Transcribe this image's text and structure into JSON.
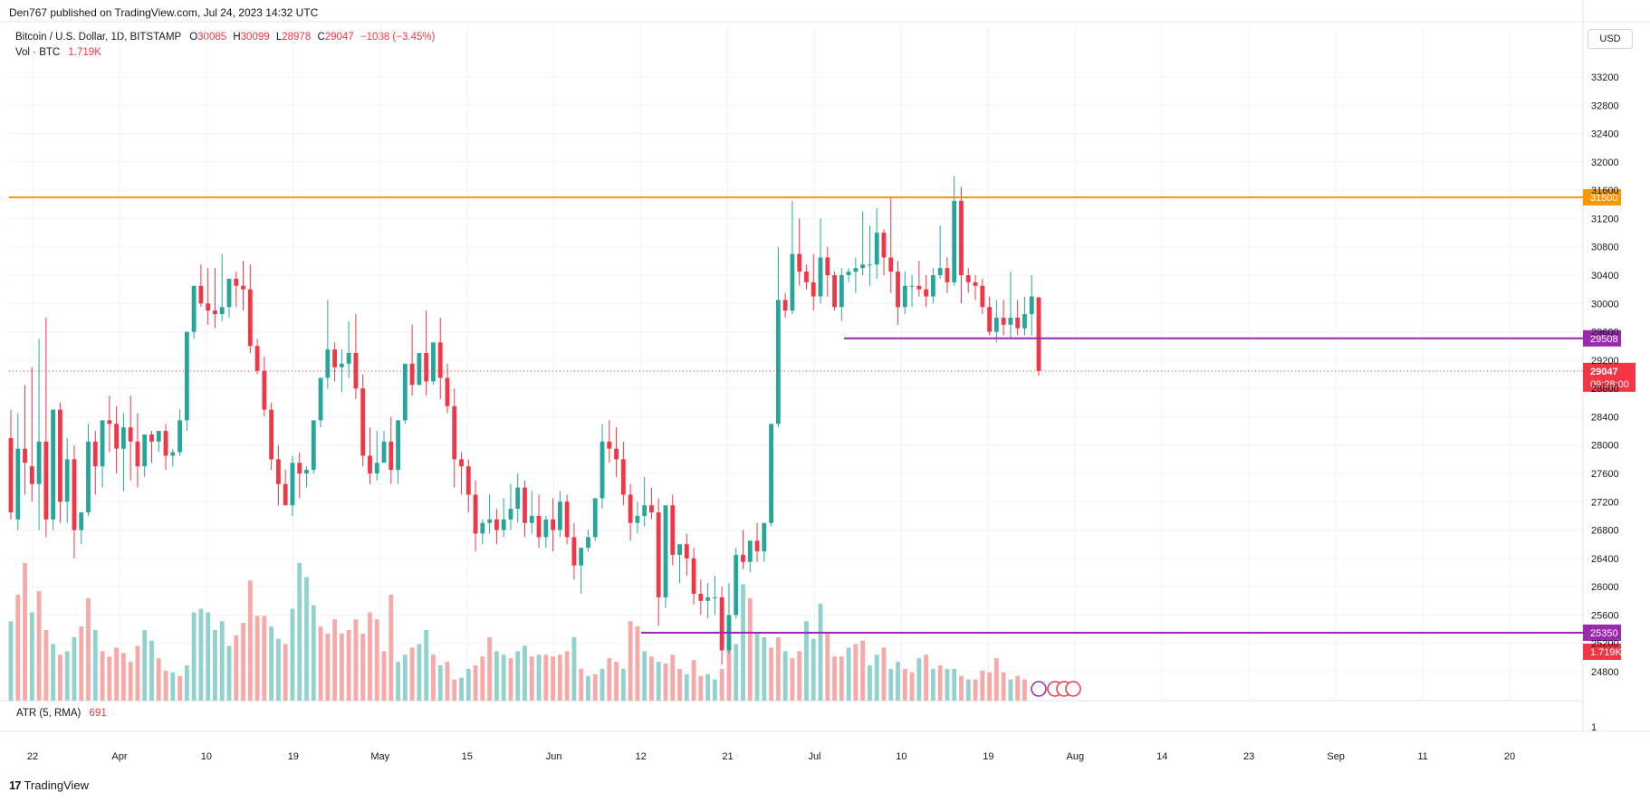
{
  "header": {
    "published": "Den767 published on TradingView.com, Jul 24, 2023 14:32 UTC",
    "symbol": "Bitcoin / U.S. Dollar, 1D, BITSTAMP",
    "o_label": "O",
    "o_value": "30085",
    "h_label": "H",
    "h_value": "30099",
    "l_label": "L",
    "l_value": "28978",
    "c_label": "C",
    "c_value": "29047",
    "change": "−1038 (−3.45%)",
    "vol_label": "Vol · BTC",
    "vol_value": "1.719K",
    "currency_button": "USD"
  },
  "atr": {
    "label": "ATR (5, RMA)",
    "value": "691",
    "axis_tick": "1"
  },
  "footer": {
    "brand": "TradingView",
    "logo_mark": "17"
  },
  "colors": {
    "up": "#26a69a",
    "down": "#f23645",
    "orange": "#ff9800",
    "purple": "#9c27b0",
    "vol_up": "#92d2cc",
    "vol_down": "#f7a9a7"
  },
  "chart_data": {
    "type": "candlestick",
    "yticks": [
      "33200",
      "32800",
      "32400",
      "32000",
      "31600",
      "31200",
      "30800",
      "30400",
      "30000",
      "29600",
      "29200",
      "28800",
      "28400",
      "28000",
      "27600",
      "27200",
      "26800",
      "26400",
      "26000",
      "25600",
      "25200",
      "24800"
    ],
    "ylim": [
      24500,
      33500
    ],
    "xticks": [
      "22",
      "Apr",
      "10",
      "19",
      "May",
      "15",
      "Jun",
      "12",
      "21",
      "Jul",
      "10",
      "19",
      "Aug",
      "14",
      "23",
      "Sep",
      "11",
      "20"
    ],
    "horizontal_levels": [
      {
        "value": 31500,
        "label": "31500",
        "color": "#ff9800"
      },
      {
        "value": 29508,
        "label": "29508",
        "color": "#9c27b0"
      },
      {
        "value": 25350,
        "label": "25350",
        "color": "#9c27b0"
      }
    ],
    "last_price": {
      "value": 29047,
      "label": "29047",
      "countdown": "09:28:00"
    },
    "volume_last_label": "1.719K",
    "candles": [
      [
        28100,
        28500,
        27050,
        26950
      ],
      [
        26950,
        28450,
        27950,
        26800
      ],
      [
        27950,
        28850,
        27750,
        27300
      ],
      [
        27700,
        29100,
        27450,
        27200
      ],
      [
        27450,
        29500,
        28050,
        26800
      ],
      [
        28050,
        29800,
        26950,
        26700
      ],
      [
        26950,
        28400,
        28500,
        26800
      ],
      [
        28500,
        28600,
        27200,
        26900
      ],
      [
        27200,
        28100,
        27800,
        26900
      ],
      [
        27800,
        28000,
        26800,
        26400
      ],
      [
        26800,
        26950,
        27050,
        26600
      ],
      [
        27050,
        28300,
        28050,
        27000
      ],
      [
        28050,
        28200,
        27700,
        27300
      ],
      [
        27700,
        28300,
        28350,
        27400
      ],
      [
        28350,
        28700,
        28300,
        27900
      ],
      [
        28300,
        28550,
        27950,
        27600
      ],
      [
        27950,
        28450,
        28250,
        27350
      ],
      [
        28250,
        28700,
        28050,
        27500
      ],
      [
        28050,
        28450,
        27700,
        27400
      ],
      [
        27700,
        28150,
        28150,
        27550
      ],
      [
        28150,
        28200,
        28050,
        27750
      ],
      [
        28050,
        28200,
        28200,
        27900
      ],
      [
        28200,
        28300,
        27850,
        27650
      ],
      [
        27850,
        27950,
        27900,
        27700
      ],
      [
        27900,
        28500,
        28350,
        27850
      ],
      [
        28350,
        28550,
        29600,
        28200
      ],
      [
        29600,
        30100,
        30250,
        29500
      ],
      [
        30250,
        30550,
        30000,
        29950
      ],
      [
        30000,
        30500,
        29900,
        29700
      ],
      [
        29900,
        30500,
        29850,
        29650
      ],
      [
        29850,
        30700,
        29950,
        29750
      ],
      [
        29950,
        30350,
        30350,
        29800
      ],
      [
        30350,
        30450,
        30250,
        29950
      ],
      [
        30250,
        30600,
        30200,
        29900
      ],
      [
        30200,
        30550,
        29400,
        29300
      ],
      [
        29400,
        29500,
        29050,
        29000
      ],
      [
        29050,
        29250,
        28500,
        28400
      ],
      [
        28500,
        28600,
        27800,
        27650
      ],
      [
        27800,
        28000,
        27450,
        27150
      ],
      [
        27450,
        27650,
        27150,
        27200
      ],
      [
        27150,
        27850,
        27750,
        27000
      ],
      [
        27750,
        27900,
        27600,
        27250
      ],
      [
        27600,
        27700,
        27650,
        27400
      ],
      [
        27650,
        28250,
        28350,
        27600
      ],
      [
        28350,
        28650,
        28950,
        28250
      ],
      [
        28950,
        30050,
        29350,
        28800
      ],
      [
        29350,
        29450,
        29100,
        28900
      ],
      [
        29100,
        29350,
        29150,
        28750
      ],
      [
        29150,
        29750,
        29300,
        28950
      ],
      [
        29300,
        29850,
        28800,
        28650
      ],
      [
        28800,
        29000,
        27850,
        27700
      ],
      [
        27850,
        28250,
        27600,
        27450
      ],
      [
        27600,
        28200,
        27750,
        27500
      ],
      [
        27750,
        28200,
        28050,
        27850
      ],
      [
        28050,
        28400,
        27650,
        27450
      ],
      [
        27650,
        28100,
        28350,
        27450
      ],
      [
        28350,
        28500,
        29150,
        28300
      ],
      [
        29150,
        29700,
        28850,
        28700
      ],
      [
        28850,
        29150,
        29300,
        28850
      ],
      [
        29300,
        29900,
        28900,
        28700
      ],
      [
        28900,
        29150,
        29450,
        28850
      ],
      [
        29450,
        29800,
        28950,
        28650
      ],
      [
        28950,
        29150,
        28550,
        28450
      ],
      [
        28550,
        28800,
        27800,
        27400
      ],
      [
        27800,
        27900,
        27700,
        27300
      ],
      [
        27700,
        27800,
        27300,
        27050
      ],
      [
        27300,
        27500,
        26750,
        26500
      ],
      [
        26750,
        26950,
        26900,
        26600
      ],
      [
        26900,
        27300,
        26950,
        26750
      ],
      [
        26950,
        27100,
        26800,
        26600
      ],
      [
        26800,
        27250,
        26950,
        26700
      ],
      [
        26950,
        27450,
        27100,
        26800
      ],
      [
        27100,
        27600,
        27400,
        26900
      ],
      [
        27400,
        27500,
        26900,
        26700
      ],
      [
        26900,
        27350,
        27000,
        26750
      ],
      [
        27000,
        27300,
        26700,
        26550
      ],
      [
        26700,
        27000,
        26950,
        26550
      ],
      [
        26950,
        27250,
        26800,
        26500
      ],
      [
        26800,
        27350,
        27200,
        26700
      ],
      [
        27200,
        27300,
        26700,
        26600
      ],
      [
        26700,
        26900,
        26300,
        26100
      ],
      [
        26300,
        26450,
        26550,
        25900
      ],
      [
        26550,
        26800,
        26700,
        26500
      ],
      [
        26700,
        27100,
        27250,
        26650
      ],
      [
        27250,
        28300,
        28050,
        27100
      ],
      [
        28050,
        28350,
        27950,
        27750
      ],
      [
        27950,
        28250,
        27800,
        27550
      ],
      [
        27800,
        28050,
        27300,
        27150
      ],
      [
        27300,
        27450,
        26900,
        26650
      ],
      [
        26900,
        27200,
        27000,
        26750
      ],
      [
        27000,
        27550,
        27150,
        26850
      ],
      [
        27150,
        27400,
        27050,
        26950
      ],
      [
        27050,
        27250,
        25850,
        25450
      ],
      [
        25850,
        27050,
        27150,
        25700
      ],
      [
        27150,
        27300,
        26450,
        26300
      ],
      [
        26450,
        26600,
        26600,
        26050
      ],
      [
        26600,
        26750,
        26400,
        26150
      ],
      [
        26400,
        26550,
        25900,
        25750
      ],
      [
        25900,
        26100,
        25800,
        25600
      ],
      [
        25800,
        26050,
        25850,
        25550
      ],
      [
        25850,
        26150,
        25850,
        25600
      ],
      [
        25850,
        26000,
        25100,
        24900
      ],
      [
        25100,
        26050,
        25600,
        25050
      ],
      [
        25600,
        26550,
        26450,
        25550
      ],
      [
        26450,
        26800,
        26350,
        26250
      ],
      [
        26350,
        26600,
        26650,
        26200
      ],
      [
        26650,
        26900,
        26500,
        26350
      ],
      [
        26500,
        26800,
        26900,
        26350
      ],
      [
        26900,
        27000,
        28300,
        26850
      ],
      [
        28300,
        30800,
        30050,
        28250
      ],
      [
        30050,
        30150,
        29900,
        29800
      ],
      [
        29900,
        31450,
        30700,
        29850
      ],
      [
        30700,
        31200,
        30450,
        30250
      ],
      [
        30450,
        30550,
        30300,
        30200
      ],
      [
        30300,
        30700,
        30100,
        29900
      ],
      [
        30100,
        31200,
        30650,
        30000
      ],
      [
        30650,
        30800,
        30400,
        30100
      ],
      [
        30400,
        30450,
        29950,
        29900
      ],
      [
        29950,
        30500,
        30400,
        29750
      ],
      [
        30400,
        30500,
        30450,
        30300
      ],
      [
        30450,
        30650,
        30500,
        30150
      ],
      [
        30500,
        31300,
        30550,
        30400
      ],
      [
        30550,
        31100,
        30550,
        30250
      ],
      [
        30550,
        31350,
        31000,
        30350
      ],
      [
        31000,
        31050,
        30650,
        30400
      ],
      [
        30650,
        31500,
        30450,
        30150
      ],
      [
        30450,
        30600,
        29950,
        29700
      ],
      [
        29950,
        30450,
        30250,
        29850
      ],
      [
        30250,
        30400,
        30250,
        29950
      ],
      [
        30250,
        30600,
        30200,
        30100
      ],
      [
        30200,
        30400,
        30100,
        29950
      ],
      [
        30100,
        30500,
        30400,
        30000
      ],
      [
        30400,
        31100,
        30500,
        30350
      ],
      [
        30500,
        30650,
        30300,
        30150
      ],
      [
        30300,
        31800,
        31450,
        30250
      ],
      [
        31450,
        31650,
        30400,
        30000
      ],
      [
        30400,
        30500,
        30300,
        30150
      ],
      [
        30300,
        30400,
        30250,
        30050
      ],
      [
        30250,
        30350,
        29950,
        29850
      ],
      [
        29950,
        30100,
        29600,
        29550
      ],
      [
        29600,
        30050,
        29800,
        29450
      ],
      [
        29800,
        30050,
        29700,
        29550
      ],
      [
        29700,
        30450,
        29800,
        29500
      ],
      [
        29800,
        30050,
        29650,
        29550
      ],
      [
        29650,
        30100,
        29850,
        29550
      ],
      [
        29850,
        30400,
        30100,
        29550
      ],
      [
        30085,
        30099,
        29047,
        28978
      ]
    ],
    "volumes": [
      [
        45,
        1
      ],
      [
        60,
        0
      ],
      [
        78,
        0
      ],
      [
        50,
        1
      ],
      [
        62,
        0
      ],
      [
        40,
        0
      ],
      [
        32,
        1
      ],
      [
        26,
        0
      ],
      [
        28,
        1
      ],
      [
        36,
        1
      ],
      [
        42,
        0
      ],
      [
        58,
        0
      ],
      [
        40,
        1
      ],
      [
        28,
        0
      ],
      [
        25,
        0
      ],
      [
        30,
        0
      ],
      [
        27,
        0
      ],
      [
        22,
        0
      ],
      [
        31,
        0
      ],
      [
        40,
        1
      ],
      [
        34,
        1
      ],
      [
        24,
        0
      ],
      [
        17,
        0
      ],
      [
        16,
        1
      ],
      [
        14,
        0
      ],
      [
        20,
        1
      ],
      [
        50,
        1
      ],
      [
        52,
        1
      ],
      [
        50,
        1
      ],
      [
        40,
        1
      ],
      [
        45,
        1
      ],
      [
        31,
        1
      ],
      [
        37,
        0
      ],
      [
        44,
        0
      ],
      [
        68,
        0
      ],
      [
        48,
        0
      ],
      [
        48,
        0
      ],
      [
        42,
        1
      ],
      [
        35,
        1
      ],
      [
        32,
        0
      ],
      [
        52,
        1
      ],
      [
        78,
        1
      ],
      [
        70,
        1
      ],
      [
        54,
        1
      ],
      [
        42,
        0
      ],
      [
        38,
        0
      ],
      [
        46,
        0
      ],
      [
        38,
        0
      ],
      [
        40,
        0
      ],
      [
        46,
        0
      ],
      [
        38,
        0
      ],
      [
        50,
        0
      ],
      [
        46,
        0
      ],
      [
        28,
        0
      ],
      [
        60,
        0
      ],
      [
        22,
        1
      ],
      [
        26,
        1
      ],
      [
        30,
        0
      ],
      [
        32,
        1
      ],
      [
        40,
        1
      ],
      [
        26,
        0
      ],
      [
        20,
        1
      ],
      [
        22,
        0
      ],
      [
        12,
        0
      ],
      [
        13,
        1
      ],
      [
        18,
        1
      ],
      [
        20,
        0
      ],
      [
        25,
        0
      ],
      [
        36,
        0
      ],
      [
        28,
        1
      ],
      [
        26,
        1
      ],
      [
        24,
        0
      ],
      [
        28,
        1
      ],
      [
        31,
        1
      ],
      [
        25,
        0
      ],
      [
        26,
        1
      ],
      [
        26,
        0
      ],
      [
        25,
        0
      ],
      [
        26,
        0
      ],
      [
        28,
        0
      ],
      [
        36,
        1
      ],
      [
        18,
        0
      ],
      [
        14,
        1
      ],
      [
        15,
        0
      ],
      [
        18,
        1
      ],
      [
        24,
        0
      ],
      [
        22,
        0
      ],
      [
        18,
        1
      ],
      [
        45,
        0
      ],
      [
        42,
        0
      ],
      [
        28,
        1
      ],
      [
        25,
        0
      ],
      [
        22,
        1
      ],
      [
        21,
        0
      ],
      [
        26,
        0
      ],
      [
        18,
        0
      ],
      [
        15,
        1
      ],
      [
        23,
        0
      ],
      [
        14,
        0
      ],
      [
        15,
        1
      ],
      [
        12,
        1
      ],
      [
        18,
        0
      ],
      [
        32,
        0
      ],
      [
        32,
        1
      ],
      [
        66,
        1
      ],
      [
        58,
        0
      ],
      [
        38,
        1
      ],
      [
        36,
        1
      ],
      [
        30,
        0
      ],
      [
        36,
        0
      ],
      [
        28,
        1
      ],
      [
        24,
        0
      ],
      [
        28,
        0
      ],
      [
        45,
        1
      ],
      [
        35,
        1
      ],
      [
        55,
        1
      ],
      [
        38,
        0
      ],
      [
        25,
        0
      ],
      [
        25,
        0
      ],
      [
        30,
        1
      ],
      [
        32,
        0
      ],
      [
        34,
        0
      ],
      [
        20,
        1
      ],
      [
        26,
        1
      ],
      [
        30,
        0
      ],
      [
        18,
        1
      ],
      [
        22,
        1
      ],
      [
        18,
        0
      ],
      [
        16,
        0
      ],
      [
        24,
        1
      ],
      [
        26,
        0
      ],
      [
        18,
        1
      ],
      [
        20,
        0
      ],
      [
        18,
        1
      ],
      [
        18,
        1
      ],
      [
        14,
        0
      ],
      [
        12,
        1
      ],
      [
        12,
        0
      ],
      [
        17,
        0
      ],
      [
        16,
        0
      ],
      [
        24,
        0
      ],
      [
        16,
        0
      ],
      [
        12,
        1
      ],
      [
        14,
        0
      ],
      [
        12,
        0
      ]
    ]
  }
}
